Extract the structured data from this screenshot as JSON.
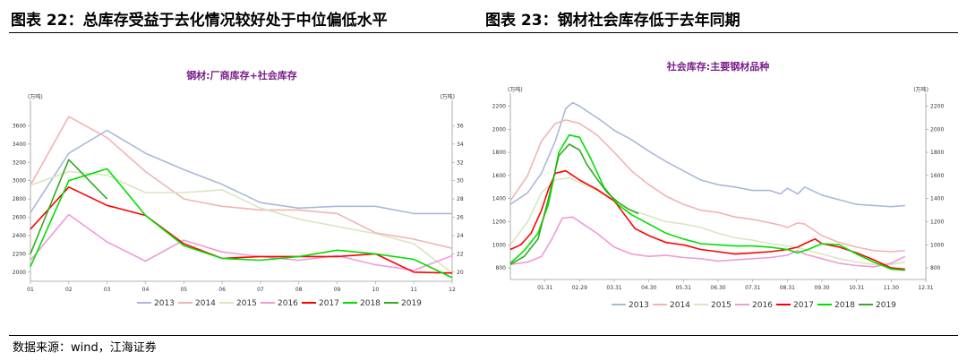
{
  "header": {
    "left": "图表 22：总库存受益于去化情况较好处于中位偏低水平",
    "right": "图表 23：钢材社会库存低于去年同期"
  },
  "source": "数据来源：wind，江海证券",
  "chart_data": [
    {
      "type": "line",
      "title": "钢材:厂商库存+社会库存",
      "yunit_left": "(万吨)",
      "yunit_right": "(万吨)",
      "categories": [
        "01",
        "02",
        "03",
        "04",
        "05",
        "06",
        "07",
        "08",
        "09",
        "10",
        "11",
        "12"
      ],
      "ylim": [
        1900,
        3800
      ],
      "yticks": [
        2000,
        2200,
        2400,
        2600,
        2800,
        3000,
        3200,
        3400,
        3600
      ],
      "legend": "bottom",
      "grid": false,
      "series": [
        {
          "name": "2013",
          "color": "#aab8da",
          "values": [
            2650,
            3300,
            3550,
            3300,
            3120,
            2960,
            2760,
            2700,
            2720,
            2720,
            2640,
            2640
          ]
        },
        {
          "name": "2014",
          "color": "#f3b3b3",
          "values": [
            2950,
            3700,
            3470,
            3100,
            2800,
            2720,
            2680,
            2680,
            2640,
            2430,
            2360,
            2260
          ]
        },
        {
          "name": "2015",
          "color": "#d9e6bf",
          "values": [
            2950,
            3100,
            3060,
            2870,
            2870,
            2900,
            2700,
            2580,
            2500,
            2420,
            2310,
            1990
          ]
        },
        {
          "name": "2016",
          "color": "#f09ad6",
          "values": [
            2130,
            2630,
            2330,
            2120,
            2350,
            2220,
            2170,
            2130,
            2180,
            2080,
            2020,
            2180
          ]
        },
        {
          "name": "2017",
          "color": "#ff0000",
          "values": [
            2470,
            2930,
            2730,
            2620,
            2310,
            2150,
            2170,
            2170,
            2170,
            2200,
            2000,
            1990
          ]
        },
        {
          "name": "2018",
          "color": "#00e000",
          "values": [
            2060,
            3000,
            3130,
            2620,
            2290,
            2150,
            2130,
            2170,
            2240,
            2200,
            2140,
            1940
          ]
        },
        {
          "name": "2019",
          "color": "#33aa22",
          "values": [
            2200,
            3230,
            2800,
            null,
            null,
            null,
            null,
            null,
            null,
            null,
            null,
            null
          ]
        }
      ]
    },
    {
      "type": "line",
      "title": "社会库存:主要钢材品种",
      "yunit_left": "(万吨)",
      "yunit_right": "(万吨)",
      "xticks": [
        "01.31",
        "02.29",
        "03.31",
        "04.30",
        "05.31",
        "06.30",
        "07.31",
        "08.31",
        "09.30",
        "10.31",
        "11.30",
        "12.31"
      ],
      "ylim": [
        700,
        2250
      ],
      "yticks": [
        800,
        1000,
        1200,
        1400,
        1600,
        1800,
        2000,
        2200
      ],
      "legend": "bottom",
      "grid": false,
      "series": [
        {
          "name": "2013",
          "color": "#aab8da",
          "x": [
            0,
            0.5,
            0.9,
            1.3,
            1.6,
            1.8,
            2,
            2.3,
            2.6,
            3,
            3.5,
            4,
            4.5,
            5,
            5.5,
            6,
            6.5,
            7,
            7.5,
            7.8,
            8,
            8.3,
            8.5,
            9,
            9.5,
            10,
            10.5,
            11,
            11.4
          ],
          "values": [
            1350,
            1450,
            1620,
            1900,
            2180,
            2230,
            2200,
            2140,
            2080,
            1990,
            1910,
            1810,
            1720,
            1640,
            1560,
            1520,
            1500,
            1470,
            1470,
            1440,
            1490,
            1440,
            1500,
            1430,
            1390,
            1350,
            1340,
            1330,
            1340
          ]
        },
        {
          "name": "2014",
          "color": "#f3b3b3",
          "x": [
            0,
            0.5,
            0.9,
            1.3,
            1.6,
            2,
            2.5,
            3,
            3.5,
            4,
            4.5,
            5,
            5.5,
            6,
            6.5,
            7,
            7.5,
            7.8,
            8,
            8.3,
            8.5,
            9,
            9.5,
            10,
            10.5,
            11,
            11.4
          ],
          "values": [
            1380,
            1600,
            1900,
            2050,
            2080,
            2050,
            1950,
            1800,
            1640,
            1520,
            1420,
            1350,
            1300,
            1280,
            1240,
            1220,
            1190,
            1170,
            1150,
            1190,
            1180,
            1080,
            1020,
            980,
            950,
            940,
            950
          ]
        },
        {
          "name": "2015",
          "color": "#d9e6bf",
          "x": [
            0,
            0.5,
            0.9,
            1.3,
            1.7,
            2,
            2.5,
            3,
            3.5,
            4,
            4.5,
            5,
            5.5,
            6,
            6.5,
            7,
            7.5,
            8,
            8.5,
            9,
            9.5,
            10,
            10.5,
            11,
            11.4
          ],
          "values": [
            1000,
            1200,
            1450,
            1560,
            1580,
            1540,
            1470,
            1380,
            1300,
            1250,
            1200,
            1180,
            1150,
            1100,
            1060,
            1040,
            1010,
            990,
            960,
            920,
            880,
            850,
            830,
            830,
            850
          ]
        },
        {
          "name": "2016",
          "color": "#f09ad6",
          "x": [
            0,
            0.5,
            0.9,
            1.2,
            1.5,
            1.8,
            2.1,
            2.5,
            3,
            3.5,
            4,
            4.5,
            5,
            5.5,
            6,
            6.5,
            7,
            7.5,
            8,
            8.3,
            8.5,
            9,
            9.5,
            10,
            10.5,
            11,
            11.4
          ],
          "values": [
            830,
            850,
            900,
            1050,
            1230,
            1240,
            1180,
            1100,
            980,
            920,
            900,
            910,
            890,
            880,
            860,
            870,
            880,
            890,
            910,
            950,
            920,
            880,
            840,
            820,
            810,
            840,
            900
          ]
        },
        {
          "name": "2017",
          "color": "#ff0000",
          "x": [
            0,
            0.3,
            0.6,
            0.9,
            1.1,
            1.3,
            1.6,
            2,
            2.5,
            3,
            3.3,
            3.6,
            4,
            4.5,
            5,
            5.5,
            6,
            6.5,
            7,
            7.5,
            8,
            8.3,
            8.5,
            8.8,
            9,
            9.5,
            10,
            10.5,
            11,
            11.4
          ],
          "values": [
            960,
            1000,
            1100,
            1300,
            1480,
            1620,
            1640,
            1560,
            1480,
            1380,
            1260,
            1140,
            1080,
            1020,
            1000,
            960,
            940,
            920,
            930,
            940,
            960,
            980,
            1010,
            1050,
            1010,
            980,
            930,
            870,
            800,
            790
          ]
        },
        {
          "name": "2018",
          "color": "#00e000",
          "x": [
            0,
            0.4,
            0.8,
            1.1,
            1.4,
            1.7,
            2,
            2.3,
            2.7,
            3.1,
            3.5,
            4,
            4.5,
            5,
            5.5,
            6,
            6.5,
            7,
            7.5,
            8,
            8.3,
            8.6,
            9,
            9.5,
            10,
            10.5,
            11,
            11.4
          ],
          "values": [
            840,
            950,
            1100,
            1350,
            1800,
            1950,
            1930,
            1760,
            1500,
            1350,
            1260,
            1180,
            1100,
            1050,
            1010,
            1000,
            990,
            990,
            980,
            960,
            930,
            960,
            1010,
            1000,
            920,
            850,
            790,
            780
          ]
        },
        {
          "name": "2019",
          "color": "#33aa22",
          "x": [
            0,
            0.4,
            0.8,
            1.1,
            1.4,
            1.7,
            2,
            2.2,
            2.5,
            2.8,
            3.1,
            3.4,
            3.7
          ],
          "values": [
            830,
            900,
            1050,
            1400,
            1770,
            1870,
            1820,
            1700,
            1570,
            1450,
            1370,
            1310,
            1270
          ]
        }
      ]
    }
  ]
}
